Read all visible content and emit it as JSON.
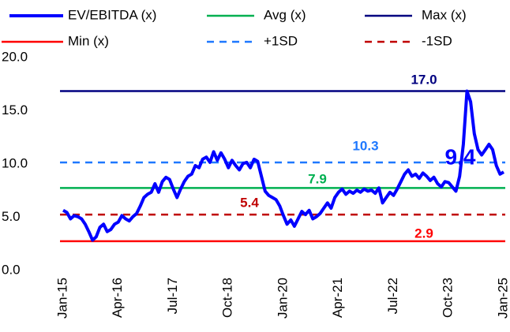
{
  "chart_data": {
    "type": "line",
    "categories": [
      "Jan-15",
      null,
      null,
      null,
      null,
      null,
      null,
      null,
      null,
      null,
      null,
      null,
      null,
      null,
      null,
      "Apr-16",
      null,
      null,
      null,
      null,
      null,
      null,
      null,
      null,
      null,
      null,
      null,
      null,
      null,
      null,
      "Jul-17",
      null,
      null,
      null,
      null,
      null,
      null,
      null,
      null,
      null,
      null,
      null,
      null,
      null,
      null,
      "Oct-18",
      null,
      null,
      null,
      null,
      null,
      null,
      null,
      null,
      null,
      null,
      null,
      null,
      null,
      null,
      "Jan-20",
      null,
      null,
      null,
      null,
      null,
      null,
      null,
      null,
      null,
      null,
      null,
      null,
      null,
      null,
      "Apr-21",
      null,
      null,
      null,
      null,
      null,
      null,
      null,
      null,
      null,
      null,
      null,
      null,
      null,
      null,
      "Jul-22",
      null,
      null,
      null,
      null,
      null,
      null,
      null,
      null,
      null,
      null,
      null,
      null,
      null,
      null,
      "Oct-23",
      null,
      null,
      null,
      null,
      null,
      null,
      null,
      null,
      null,
      null,
      null,
      null,
      null,
      null,
      "Jan-25"
    ],
    "series": [
      {
        "name": "EV/EBITDA (x)",
        "color": "#0000ff",
        "values": [
          5.8,
          5.6,
          5.0,
          5.3,
          5.2,
          5.0,
          4.5,
          3.8,
          3.0,
          3.3,
          4.2,
          4.5,
          3.8,
          4.0,
          4.5,
          4.7,
          5.3,
          5.0,
          4.8,
          5.2,
          5.5,
          6.2,
          7.0,
          7.3,
          7.5,
          8.3,
          7.5,
          8.5,
          8.9,
          8.7,
          7.8,
          7.0,
          7.8,
          8.5,
          9.0,
          9.2,
          10.0,
          9.8,
          10.6,
          10.8,
          10.3,
          11.3,
          10.5,
          11.2,
          10.6,
          9.8,
          10.5,
          10.0,
          9.6,
          10.2,
          10.3,
          9.8,
          10.6,
          10.4,
          9.0,
          7.6,
          7.2,
          7.0,
          6.8,
          6.2,
          5.3,
          4.5,
          4.9,
          4.3,
          5.0,
          5.7,
          5.4,
          5.8,
          5.0,
          5.2,
          5.5,
          6.0,
          6.5,
          6.0,
          7.0,
          7.5,
          7.8,
          7.3,
          7.6,
          7.4,
          7.7,
          7.5,
          7.8,
          7.6,
          7.7,
          7.4,
          7.9,
          6.5,
          7.0,
          7.5,
          7.2,
          7.8,
          8.5,
          9.2,
          9.6,
          9.0,
          9.2,
          8.8,
          9.3,
          9.0,
          8.6,
          8.9,
          8.3,
          8.0,
          8.5,
          8.4,
          8.0,
          7.6,
          9.0,
          12.0,
          17.0,
          16.0,
          13.0,
          11.5,
          11.0,
          11.5,
          12.0,
          11.5,
          10.0,
          9.2,
          9.4
        ]
      }
    ],
    "reference_lines": [
      {
        "name": "Avg (x)",
        "color": "#00b050",
        "value": 7.9,
        "dashed": false
      },
      {
        "name": "Max (x)",
        "color": "#000080",
        "value": 17,
        "value_label": "17.0",
        "dashed": false
      },
      {
        "name": "Min (x)",
        "color": "#ff0000",
        "value": 2.9,
        "dashed": false
      },
      {
        "name": "+1SD",
        "color": "#1e78ff",
        "value": 10.3,
        "dashed": true
      },
      {
        "name": "-1SD",
        "color": "#c00000",
        "value": 5.4,
        "dashed": true
      }
    ],
    "ylim": [
      0,
      20
    ],
    "yticks": [
      {
        "value": 0,
        "label": "0.0"
      },
      {
        "value": 5,
        "label": "5.0"
      },
      {
        "value": 10,
        "label": "10.0"
      },
      {
        "value": 15,
        "label": "15.0"
      },
      {
        "value": 20,
        "label": "20.0"
      }
    ]
  }
}
